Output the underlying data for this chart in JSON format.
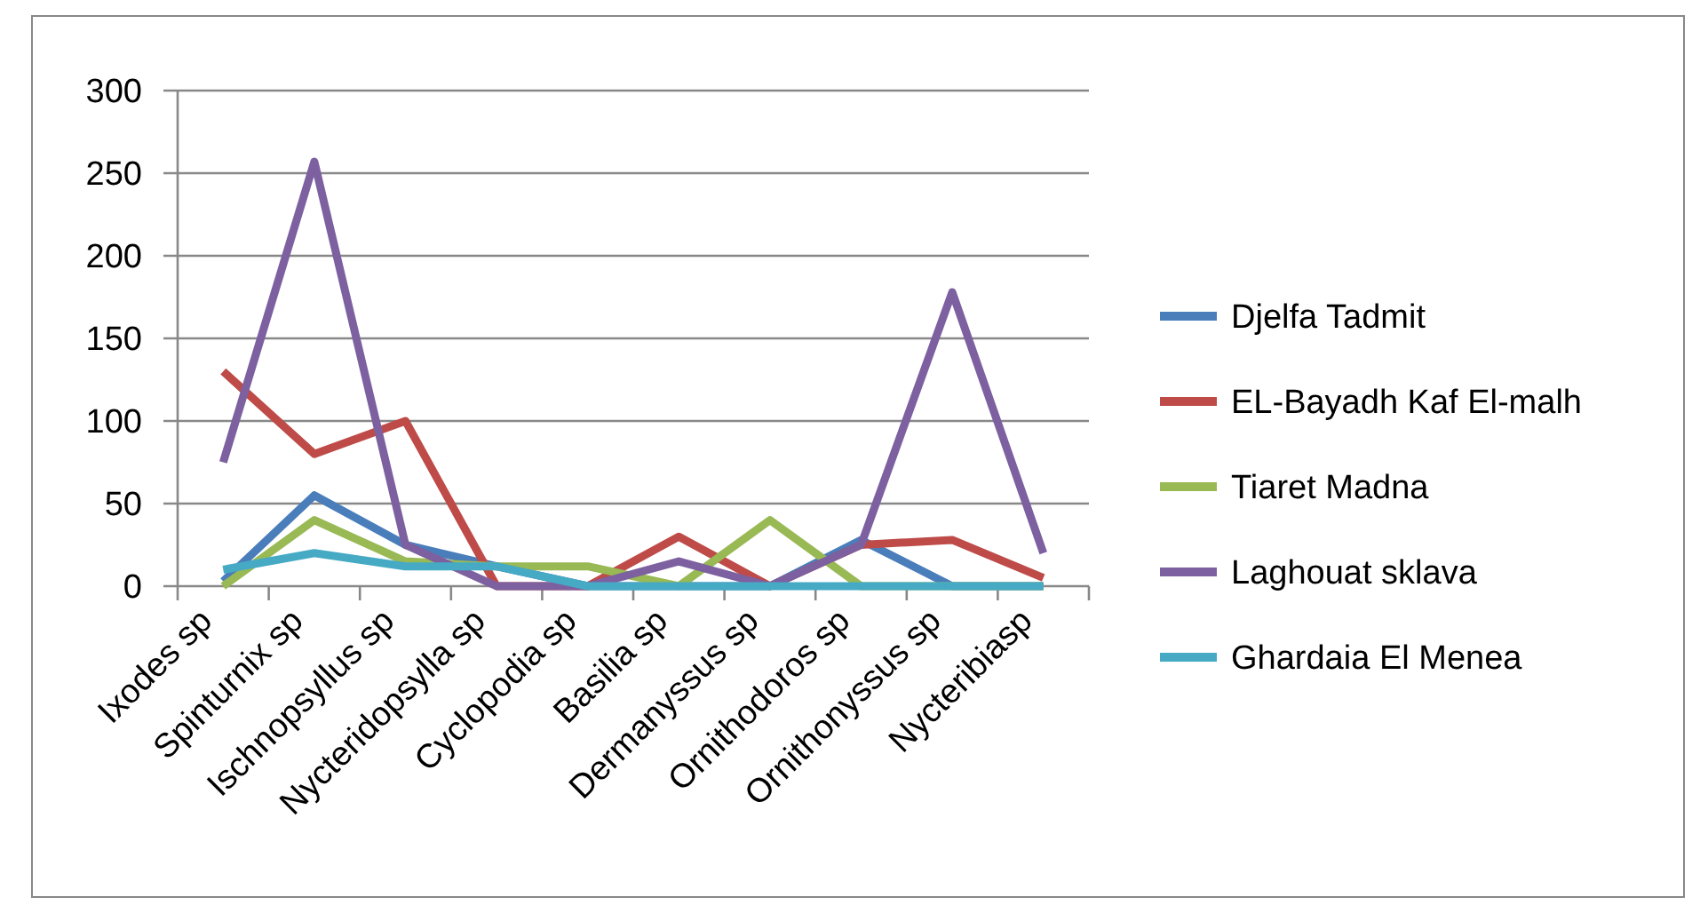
{
  "chart_data": {
    "type": "line",
    "categories": [
      "Ixodes sp",
      "Spinturnix sp",
      "Ischnopsyllus sp",
      "Nycteridopsylla sp",
      "Cyclopodia sp",
      "Basilia sp",
      "Dermanyssus sp",
      "Ornithodoros sp",
      "Ornithonyssus sp",
      "Nycteribiasp"
    ],
    "series": [
      {
        "name": "Djelfa Tadmit",
        "color": "#4a7ebb",
        "values": [
          3,
          55,
          25,
          12,
          0,
          0,
          0,
          28,
          0,
          0
        ]
      },
      {
        "name": "EL-Bayadh Kaf El-malh",
        "color": "#be4b48",
        "values": [
          130,
          80,
          100,
          0,
          0,
          30,
          0,
          25,
          28,
          5
        ]
      },
      {
        "name": "Tiaret Madna",
        "color": "#98b954",
        "values": [
          0,
          40,
          15,
          12,
          12,
          0,
          40,
          0,
          0,
          0
        ]
      },
      {
        "name": "Laghouat sklava",
        "color": "#7d60a0",
        "values": [
          75,
          257,
          25,
          0,
          0,
          15,
          0,
          25,
          178,
          20
        ]
      },
      {
        "name": "Ghardaia El Menea",
        "color": "#46aac5",
        "values": [
          10,
          20,
          12,
          12,
          0,
          0,
          0,
          0,
          0,
          0
        ]
      }
    ],
    "ylim": [
      0,
      300
    ],
    "yticks": [
      0,
      50,
      100,
      150,
      200,
      250,
      300
    ],
    "grid": "y",
    "legend": "right",
    "marker": "none",
    "line_style": "solid"
  }
}
